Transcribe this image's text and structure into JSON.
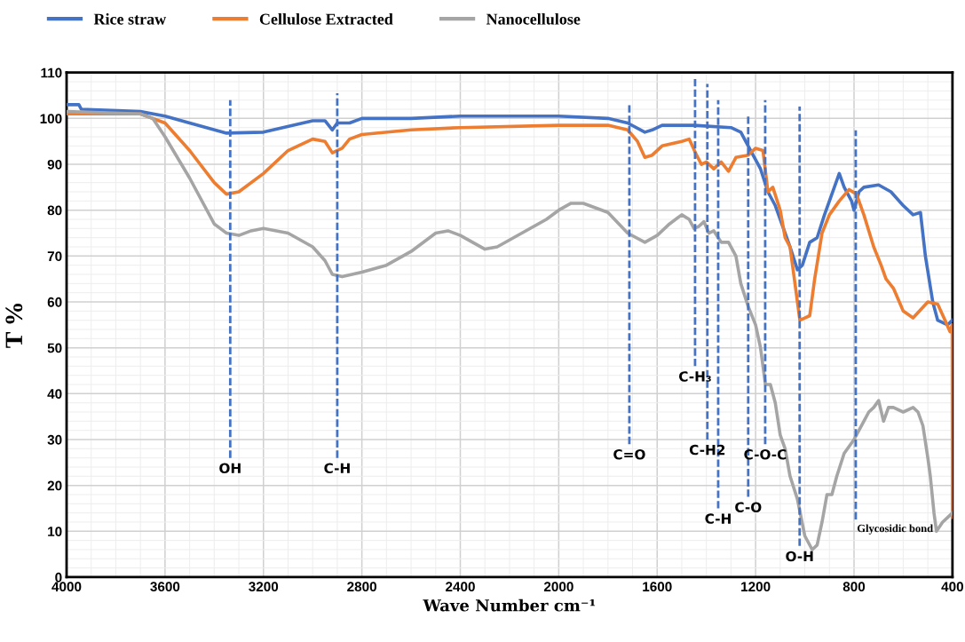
{
  "chart_data": {
    "type": "line",
    "xlabel": "Wave Number cm⁻¹",
    "ylabel": "T %",
    "xlim": [
      4000,
      400
    ],
    "xticks": [
      4000,
      3600,
      3200,
      2800,
      2400,
      2000,
      1600,
      1200,
      800,
      400
    ],
    "ylim": [
      0,
      110
    ],
    "yticks": [
      0,
      10,
      20,
      30,
      40,
      50,
      60,
      70,
      80,
      90,
      100,
      110
    ],
    "grid": true,
    "legend": "top",
    "marker": "none",
    "line_style": "solid",
    "series": [
      {
        "name": "Rice straw",
        "color": "#4472c4",
        "x": [
          4000,
          3950,
          3940,
          3700,
          3600,
          3500,
          3350,
          3200,
          3000,
          2950,
          2920,
          2900,
          2850,
          2800,
          2600,
          2400,
          2000,
          1800,
          1720,
          1650,
          1620,
          1580,
          1450,
          1300,
          1260,
          1220,
          1180,
          1150,
          1120,
          1080,
          1060,
          1030,
          1010,
          980,
          950,
          920,
          880,
          860,
          840,
          810,
          800,
          780,
          760,
          700,
          650,
          600,
          560,
          530,
          510,
          480,
          460,
          420,
          400
        ],
        "values": [
          103,
          103,
          102,
          101.5,
          100.5,
          99,
          96.8,
          97,
          99.5,
          99.5,
          97.5,
          99,
          99,
          100,
          100,
          100.5,
          100.5,
          100,
          99,
          97,
          97.5,
          98.5,
          98.5,
          98,
          97,
          93,
          89,
          84,
          81,
          75,
          72,
          67,
          68,
          73,
          74,
          79,
          85,
          88,
          85,
          82,
          80,
          84,
          85,
          85.5,
          84,
          81,
          79,
          79.5,
          70,
          60,
          56,
          55,
          56
        ]
      },
      {
        "name": "Cellulose Extracted",
        "color": "#ed7d31",
        "x": [
          4000,
          3700,
          3600,
          3500,
          3400,
          3350,
          3300,
          3200,
          3100,
          3000,
          2950,
          2920,
          2880,
          2850,
          2800,
          2600,
          2400,
          2000,
          1800,
          1720,
          1680,
          1650,
          1620,
          1580,
          1500,
          1470,
          1440,
          1420,
          1400,
          1370,
          1340,
          1310,
          1280,
          1230,
          1200,
          1170,
          1150,
          1130,
          1100,
          1080,
          1060,
          1040,
          1020,
          1000,
          980,
          960,
          930,
          900,
          860,
          820,
          790,
          760,
          720,
          690,
          670,
          640,
          600,
          560,
          500,
          460,
          430,
          410,
          401,
          400
        ],
        "values": [
          101,
          101,
          99,
          93,
          86,
          83.5,
          84,
          88,
          93,
          95.5,
          95,
          92.5,
          93.5,
          95.5,
          96.5,
          97.5,
          98,
          98.5,
          98.5,
          97.5,
          95,
          91.5,
          92,
          94,
          95,
          95.5,
          92,
          90,
          90.5,
          89,
          90.5,
          88.5,
          91.5,
          92,
          93.5,
          93,
          84,
          85,
          80,
          74,
          72,
          64,
          56,
          56.5,
          57,
          65,
          75,
          79,
          82,
          84.5,
          83.5,
          79,
          72,
          68,
          65,
          63,
          58,
          56.5,
          60,
          59.5,
          56,
          53.5,
          55,
          13
        ]
      },
      {
        "name": "Nanocellulose",
        "color": "#a5a5a5",
        "x": [
          4000,
          3700,
          3650,
          3600,
          3500,
          3400,
          3350,
          3300,
          3250,
          3200,
          3100,
          3000,
          2950,
          2920,
          2880,
          2800,
          2700,
          2600,
          2500,
          2450,
          2400,
          2300,
          2250,
          2150,
          2050,
          2000,
          1950,
          1900,
          1800,
          1720,
          1650,
          1600,
          1550,
          1500,
          1470,
          1450,
          1430,
          1410,
          1390,
          1370,
          1340,
          1310,
          1280,
          1260,
          1230,
          1200,
          1180,
          1160,
          1140,
          1120,
          1100,
          1080,
          1060,
          1030,
          1000,
          970,
          950,
          930,
          910,
          890,
          870,
          840,
          800,
          760,
          740,
          720,
          700,
          680,
          660,
          640,
          600,
          560,
          540,
          520,
          500,
          490,
          475,
          465,
          440,
          420,
          400
        ],
        "values": [
          101.5,
          101,
          100,
          96,
          87,
          77,
          75,
          74.5,
          75.5,
          76,
          75,
          72,
          69,
          66,
          65.5,
          66.5,
          68,
          71,
          75,
          75.5,
          74.5,
          71.5,
          72,
          75,
          78,
          80,
          81.5,
          81.5,
          79.5,
          75,
          73,
          74.5,
          77,
          79,
          78,
          76,
          76.5,
          77.5,
          75,
          75.5,
          73,
          73,
          70,
          64,
          59,
          55,
          50,
          42,
          42,
          38,
          31,
          28,
          22,
          17,
          9,
          6,
          7,
          12,
          18,
          18,
          22,
          27,
          30,
          34,
          36,
          37,
          38.5,
          34,
          37,
          37,
          36,
          37,
          36,
          33,
          26,
          22,
          14,
          10,
          12,
          13,
          14
        ]
      },
      {
        "name": "OH",
        "color": "#4472c4",
        "line_style": "dashed",
        "x": [
          3335,
          3335
        ],
        "values": [
          104,
          26
        ]
      },
      {
        "name": "C-H",
        "color": "#4472c4",
        "line_style": "dashed",
        "x": [
          2900,
          2900
        ],
        "values": [
          105.5,
          26
        ]
      },
      {
        "name": "C=O",
        "color": "#4472c4",
        "line_style": "dashed",
        "x": [
          1713,
          1713
        ],
        "values": [
          103,
          29
        ]
      },
      {
        "name": "C-H₃",
        "color": "#4472c4",
        "line_style": "dashed",
        "x": [
          1446,
          1446
        ],
        "values": [
          109,
          46
        ]
      },
      {
        "name": "C-H2",
        "color": "#4472c4",
        "line_style": "dashed",
        "x": [
          1396,
          1396
        ],
        "values": [
          107.5,
          30
        ]
      },
      {
        "name": "C-H",
        "color": "#4472c4",
        "line_style": "dashed",
        "x": [
          1352,
          1352
        ],
        "values": [
          104,
          15
        ]
      },
      {
        "name": "C-O",
        "color": "#4472c4",
        "line_style": "dashed",
        "x": [
          1230,
          1230
        ],
        "values": [
          100.7,
          17.5
        ]
      },
      {
        "name": "C-O-C",
        "color": "#4472c4",
        "line_style": "dashed",
        "x": [
          1161,
          1161
        ],
        "values": [
          104,
          29
        ]
      },
      {
        "name": "O-H",
        "color": "#4472c4",
        "line_style": "dashed",
        "x": [
          1021,
          1021
        ],
        "values": [
          102.6,
          6.8
        ]
      },
      {
        "name": "Glycosidic bond",
        "color": "#4472c4",
        "line_style": "dashed",
        "x": [
          793,
          793
        ],
        "values": [
          97.4,
          12.6
        ]
      }
    ]
  }
}
